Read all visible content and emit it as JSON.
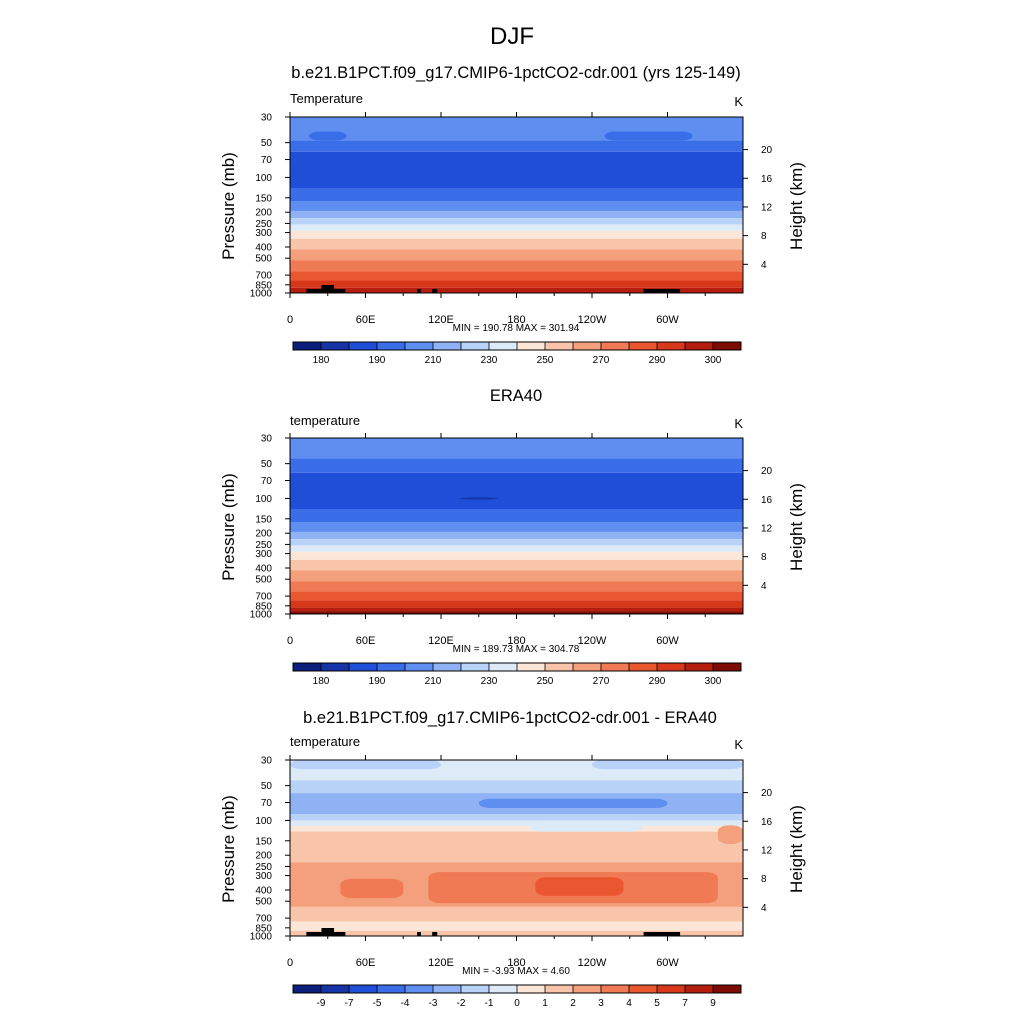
{
  "figure": {
    "title": "DJF"
  },
  "chart_data": [
    {
      "type": "heatmap",
      "title": "b.e21.B1PCT.f09_g17.CMIP6-1pctCO2-cdr.001 (yrs 125-149)",
      "variable_label": "Temperature",
      "units": "K",
      "ylabel": "Pressure (mb)",
      "ylabel_right": "Height (km)",
      "xticks": [
        "0",
        "60E",
        "120E",
        "180",
        "120W",
        "60W"
      ],
      "pressure_ticks": [
        30,
        50,
        70,
        100,
        150,
        200,
        250,
        300,
        400,
        500,
        700,
        850,
        1000
      ],
      "height_ticks": [
        20,
        16,
        12,
        8,
        4
      ],
      "stats": "MIN = 190.78  MAX = 301.94",
      "colorbar": {
        "labels": [
          "180",
          "190",
          "210",
          "230",
          "250",
          "270",
          "290",
          "300"
        ],
        "colors": [
          "#0c1e7c",
          "#1634a6",
          "#1f4ed8",
          "#3a6ee8",
          "#5d8ef0",
          "#8fb2f4",
          "#b9d2f7",
          "#ddeaf8",
          "#fbe6d8",
          "#f8c5aa",
          "#f4a07c",
          "#ef7a53",
          "#e95630",
          "#d8381a",
          "#b51e0e",
          "#7d0c05"
        ]
      },
      "bands": [
        {
          "p": 30,
          "c": 4
        },
        {
          "p": 48,
          "c": 3
        },
        {
          "p": 60,
          "c": 2
        },
        {
          "p": 125,
          "c": 3
        },
        {
          "p": 160,
          "c": 4
        },
        {
          "p": 195,
          "c": 5
        },
        {
          "p": 225,
          "c": 6
        },
        {
          "p": 255,
          "c": 7
        },
        {
          "p": 290,
          "c": 8
        },
        {
          "p": 340,
          "c": 9
        },
        {
          "p": 420,
          "c": 10
        },
        {
          "p": 520,
          "c": 11
        },
        {
          "p": 650,
          "c": 12
        },
        {
          "p": 780,
          "c": 13
        },
        {
          "p": 900,
          "c": 14
        },
        {
          "p": 1000,
          "c": 14
        }
      ],
      "patches": [
        {
          "lon": [
            15,
            45
          ],
          "p": [
            40,
            48
          ],
          "c": 3
        },
        {
          "lon": [
            250,
            320
          ],
          "p": [
            40,
            48
          ],
          "c": 3
        }
      ],
      "topography": true
    },
    {
      "type": "heatmap",
      "title": "ERA40",
      "variable_label": "temperature",
      "units": "K",
      "ylabel": "Pressure (mb)",
      "ylabel_right": "Height (km)",
      "xticks": [
        "0",
        "60E",
        "120E",
        "180",
        "120W",
        "60W"
      ],
      "pressure_ticks": [
        30,
        50,
        70,
        100,
        150,
        200,
        250,
        300,
        400,
        500,
        700,
        850,
        1000
      ],
      "height_ticks": [
        20,
        16,
        12,
        8,
        4
      ],
      "stats": "MIN = 189.73  MAX = 304.78",
      "colorbar": {
        "labels": [
          "180",
          "190",
          "210",
          "230",
          "250",
          "270",
          "290",
          "300"
        ],
        "colors": [
          "#0c1e7c",
          "#1634a6",
          "#1f4ed8",
          "#3a6ee8",
          "#5d8ef0",
          "#8fb2f4",
          "#b9d2f7",
          "#ddeaf8",
          "#fbe6d8",
          "#f8c5aa",
          "#f4a07c",
          "#ef7a53",
          "#e95630",
          "#d8381a",
          "#b51e0e",
          "#7d0c05"
        ]
      },
      "bands": [
        {
          "p": 30,
          "c": 4
        },
        {
          "p": 45,
          "c": 3
        },
        {
          "p": 60,
          "c": 2
        },
        {
          "p": 125,
          "c": 3
        },
        {
          "p": 160,
          "c": 4
        },
        {
          "p": 195,
          "c": 5
        },
        {
          "p": 225,
          "c": 6
        },
        {
          "p": 255,
          "c": 7
        },
        {
          "p": 290,
          "c": 8
        },
        {
          "p": 340,
          "c": 9
        },
        {
          "p": 420,
          "c": 10
        },
        {
          "p": 520,
          "c": 11
        },
        {
          "p": 640,
          "c": 12
        },
        {
          "p": 760,
          "c": 13
        },
        {
          "p": 880,
          "c": 14
        },
        {
          "p": 950,
          "c": 15
        }
      ],
      "patches": [
        {
          "lon": [
            135,
            165
          ],
          "p": [
            98,
            102
          ],
          "c": 1
        }
      ],
      "topography": false
    },
    {
      "type": "heatmap",
      "title": "b.e21.B1PCT.f09_g17.CMIP6-1pctCO2-cdr.001 - ERA40",
      "variable_label": "temperature",
      "units": "K",
      "ylabel": "Pressure (mb)",
      "ylabel_right": "Height (km)",
      "xticks": [
        "0",
        "60E",
        "120E",
        "180",
        "120W",
        "60W"
      ],
      "pressure_ticks": [
        30,
        50,
        70,
        100,
        150,
        200,
        250,
        300,
        400,
        500,
        700,
        850,
        1000
      ],
      "height_ticks": [
        20,
        16,
        12,
        8,
        4
      ],
      "stats": "MIN = -3.93  MAX =  4.60",
      "colorbar": {
        "labels": [
          "-9",
          "-7",
          "-5",
          "-4",
          "-3",
          "-2",
          "-1",
          "0",
          "1",
          "2",
          "3",
          "4",
          "5",
          "7",
          "9"
        ],
        "colors": [
          "#0c1e7c",
          "#1634a6",
          "#1f4ed8",
          "#3a6ee8",
          "#5d8ef0",
          "#8fb2f4",
          "#b9d2f7",
          "#ddeaf8",
          "#fbe6d8",
          "#f8c5aa",
          "#f4a07c",
          "#ef7a53",
          "#e95630",
          "#d8381a",
          "#b51e0e",
          "#7d0c05"
        ]
      },
      "bands": [
        {
          "p": 30,
          "c": 7
        },
        {
          "p": 45,
          "c": 6
        },
        {
          "p": 58,
          "c": 5
        },
        {
          "p": 88,
          "c": 6
        },
        {
          "p": 100,
          "c": 7
        },
        {
          "p": 112,
          "c": 8
        },
        {
          "p": 125,
          "c": 9
        },
        {
          "p": 230,
          "c": 10
        },
        {
          "p": 560,
          "c": 9
        },
        {
          "p": 750,
          "c": 8
        },
        {
          "p": 900,
          "c": 9
        },
        {
          "p": 1000,
          "c": 9
        }
      ],
      "patches": [
        {
          "lon": [
            0,
            120
          ],
          "p": [
            30,
            36
          ],
          "c": 6
        },
        {
          "lon": [
            240,
            360
          ],
          "p": [
            30,
            36
          ],
          "c": 6
        },
        {
          "lon": [
            150,
            300
          ],
          "p": [
            65,
            78
          ],
          "c": 4
        },
        {
          "lon": [
            190,
            280
          ],
          "p": [
            100,
            125
          ],
          "c": 7
        },
        {
          "lon": [
            40,
            90
          ],
          "p": [
            320,
            470
          ],
          "c": 11
        },
        {
          "lon": [
            110,
            340
          ],
          "p": [
            280,
            520
          ],
          "c": 11
        },
        {
          "lon": [
            195,
            265
          ],
          "p": [
            310,
            450
          ],
          "c": 12
        },
        {
          "lon": [
            340,
            360
          ],
          "p": [
            110,
            160
          ],
          "c": 10
        }
      ],
      "topography": true
    }
  ]
}
